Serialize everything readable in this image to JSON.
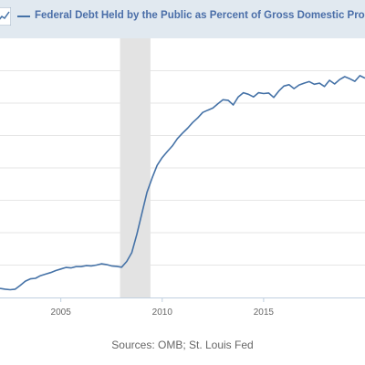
{
  "legend": {
    "icon": "line-chart-icon",
    "series_color": "#4572a7"
  },
  "chart_data": {
    "type": "line",
    "title": "",
    "xlabel": "",
    "ylabel": "",
    "xlim": [
      2002.0,
      2020.0
    ],
    "ylim": [
      0,
      100
    ],
    "grid": true,
    "legend_position": "top",
    "x_ticks": [
      {
        "value": 2005,
        "label": "2005"
      },
      {
        "value": 2010,
        "label": "2010"
      },
      {
        "value": 2015,
        "label": "2015"
      }
    ],
    "recessions": [
      {
        "start": 2007.92,
        "end": 2009.42
      }
    ],
    "series": [
      {
        "name": "Federal Debt Held by the Public as Percent of Gross Domestic Product",
        "color": "#4572a7",
        "points": [
          [
            2002.0,
            3.5
          ],
          [
            2002.25,
            3.2
          ],
          [
            2002.5,
            3.0
          ],
          [
            2002.75,
            3.2
          ],
          [
            2003.0,
            4.7
          ],
          [
            2003.25,
            6.3
          ],
          [
            2003.5,
            7.2
          ],
          [
            2003.75,
            7.4
          ],
          [
            2004.0,
            8.4
          ],
          [
            2004.25,
            9.0
          ],
          [
            2004.5,
            9.6
          ],
          [
            2004.75,
            10.4
          ],
          [
            2005.0,
            11.0
          ],
          [
            2005.25,
            11.6
          ],
          [
            2005.5,
            11.4
          ],
          [
            2005.75,
            11.9
          ],
          [
            2006.0,
            11.9
          ],
          [
            2006.25,
            12.3
          ],
          [
            2006.5,
            12.2
          ],
          [
            2006.75,
            12.5
          ],
          [
            2007.0,
            13.0
          ],
          [
            2007.25,
            12.7
          ],
          [
            2007.5,
            12.2
          ],
          [
            2007.75,
            12.0
          ],
          [
            2008.0,
            11.7
          ],
          [
            2008.25,
            13.9
          ],
          [
            2008.5,
            17.3
          ],
          [
            2008.75,
            24.4
          ],
          [
            2009.0,
            32.6
          ],
          [
            2009.25,
            40.6
          ],
          [
            2009.5,
            46.1
          ],
          [
            2009.75,
            51.0
          ],
          [
            2010.0,
            54.0
          ],
          [
            2010.25,
            56.3
          ],
          [
            2010.5,
            58.5
          ],
          [
            2010.75,
            61.3
          ],
          [
            2011.0,
            63.4
          ],
          [
            2011.25,
            65.3
          ],
          [
            2011.5,
            67.5
          ],
          [
            2011.75,
            69.3
          ],
          [
            2012.0,
            71.4
          ],
          [
            2012.25,
            72.3
          ],
          [
            2012.5,
            73.1
          ],
          [
            2012.75,
            74.8
          ],
          [
            2013.0,
            76.3
          ],
          [
            2013.25,
            76.1
          ],
          [
            2013.5,
            74.3
          ],
          [
            2013.75,
            77.4
          ],
          [
            2014.0,
            79.0
          ],
          [
            2014.25,
            78.4
          ],
          [
            2014.5,
            77.4
          ],
          [
            2014.75,
            79.0
          ],
          [
            2015.0,
            78.7
          ],
          [
            2015.25,
            78.9
          ],
          [
            2015.5,
            77.2
          ],
          [
            2015.75,
            79.7
          ],
          [
            2016.0,
            81.6
          ],
          [
            2016.25,
            82.1
          ],
          [
            2016.5,
            80.6
          ],
          [
            2016.75,
            82.0
          ],
          [
            2017.0,
            82.7
          ],
          [
            2017.25,
            83.3
          ],
          [
            2017.5,
            82.3
          ],
          [
            2017.75,
            82.7
          ],
          [
            2018.0,
            81.4
          ],
          [
            2018.25,
            83.8
          ],
          [
            2018.5,
            82.4
          ],
          [
            2018.75,
            84.1
          ],
          [
            2019.0,
            85.2
          ],
          [
            2019.25,
            84.4
          ],
          [
            2019.5,
            83.4
          ],
          [
            2019.75,
            85.6
          ],
          [
            2020.0,
            84.6
          ]
        ]
      }
    ]
  },
  "footer": {
    "source": "Sources: OMB; St. Louis Fed"
  }
}
